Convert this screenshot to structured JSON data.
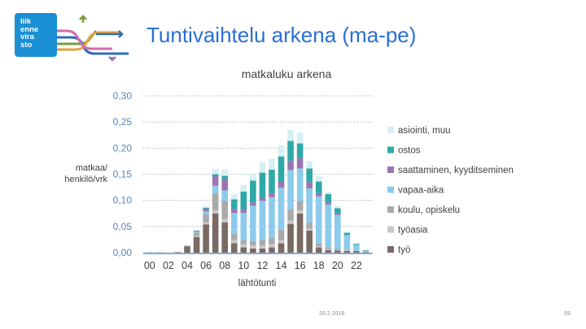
{
  "header": {
    "title": "Tuntivaihtelu arkena (ma-pe)",
    "logo_lines": [
      "liik",
      "enne",
      "vira",
      "sto"
    ],
    "colors": {
      "title": "#2a6fd6",
      "logo_bg": "#1b8fd3"
    }
  },
  "footer": {
    "date": "20.2.2018",
    "page": "59"
  },
  "chart_data": {
    "type": "bar",
    "stacked": true,
    "title": "matkaluku arkena",
    "xlabel": "lähtötunti",
    "ylabel": [
      "matkaa/",
      "henkilö/vrk"
    ],
    "ylim": [
      0,
      0.3
    ],
    "yticks": [
      "0,00",
      "0,05",
      "0,10",
      "0,15",
      "0,20",
      "0,25",
      "0,30"
    ],
    "xticks": [
      "00",
      "02",
      "04",
      "06",
      "08",
      "10",
      "12",
      "14",
      "16",
      "18",
      "20",
      "22"
    ],
    "grid": true,
    "legend_position": "right",
    "categories": [
      "0",
      "1",
      "2",
      "3",
      "4",
      "5",
      "6",
      "7",
      "8",
      "9",
      "10",
      "11",
      "12",
      "13",
      "14",
      "15",
      "16",
      "17",
      "18",
      "19",
      "20",
      "21",
      "22",
      "23"
    ],
    "series": [
      {
        "name": "työ",
        "color": "#7a6a64",
        "values": [
          0.0,
          0.0,
          0.0,
          0.001,
          0.012,
          0.03,
          0.054,
          0.075,
          0.058,
          0.018,
          0.01,
          0.008,
          0.008,
          0.01,
          0.018,
          0.055,
          0.075,
          0.042,
          0.01,
          0.005,
          0.004,
          0.003,
          0.003,
          0.001
        ]
      },
      {
        "name": "työasia",
        "color": "#c8c8c8",
        "values": [
          0.0,
          0.0,
          0.0,
          0.0,
          0.0,
          0.002,
          0.004,
          0.006,
          0.006,
          0.006,
          0.006,
          0.006,
          0.006,
          0.006,
          0.006,
          0.006,
          0.006,
          0.004,
          0.002,
          0.002,
          0.001,
          0.001,
          0.0,
          0.0
        ]
      },
      {
        "name": "koulu, opiskelu",
        "color": "#aaaaaa",
        "values": [
          0.0,
          0.0,
          0.0,
          0.0,
          0.001,
          0.006,
          0.015,
          0.032,
          0.035,
          0.012,
          0.008,
          0.008,
          0.01,
          0.012,
          0.02,
          0.022,
          0.018,
          0.012,
          0.006,
          0.003,
          0.002,
          0.001,
          0.0,
          0.0
        ]
      },
      {
        "name": "vapaa-aika",
        "color": "#8ccbec",
        "values": [
          0.001,
          0.001,
          0.0,
          0.0,
          0.001,
          0.002,
          0.006,
          0.015,
          0.02,
          0.04,
          0.052,
          0.068,
          0.075,
          0.078,
          0.08,
          0.075,
          0.062,
          0.065,
          0.09,
          0.082,
          0.065,
          0.028,
          0.012,
          0.003
        ]
      },
      {
        "name": "saattaminen, kyyditseminen",
        "color": "#9b75b3",
        "values": [
          0.0,
          0.0,
          0.0,
          0.0,
          0.0,
          0.001,
          0.005,
          0.018,
          0.022,
          0.008,
          0.006,
          0.006,
          0.006,
          0.008,
          0.012,
          0.018,
          0.02,
          0.012,
          0.006,
          0.004,
          0.003,
          0.001,
          0.0,
          0.0
        ]
      },
      {
        "name": "ostos",
        "color": "#2ea9a6",
        "values": [
          0.0,
          0.0,
          0.0,
          0.0,
          0.0,
          0.001,
          0.002,
          0.004,
          0.006,
          0.018,
          0.035,
          0.042,
          0.048,
          0.045,
          0.048,
          0.038,
          0.028,
          0.026,
          0.022,
          0.016,
          0.01,
          0.004,
          0.002,
          0.001
        ]
      },
      {
        "name": "asiointi, muu",
        "color": "#d7eff0",
        "values": [
          0.0,
          0.0,
          0.0,
          0.0,
          0.0,
          0.001,
          0.003,
          0.01,
          0.012,
          0.01,
          0.013,
          0.012,
          0.02,
          0.021,
          0.021,
          0.021,
          0.021,
          0.014,
          0.01,
          0.004,
          0.004,
          0.002,
          0.001,
          0.0
        ]
      }
    ]
  }
}
